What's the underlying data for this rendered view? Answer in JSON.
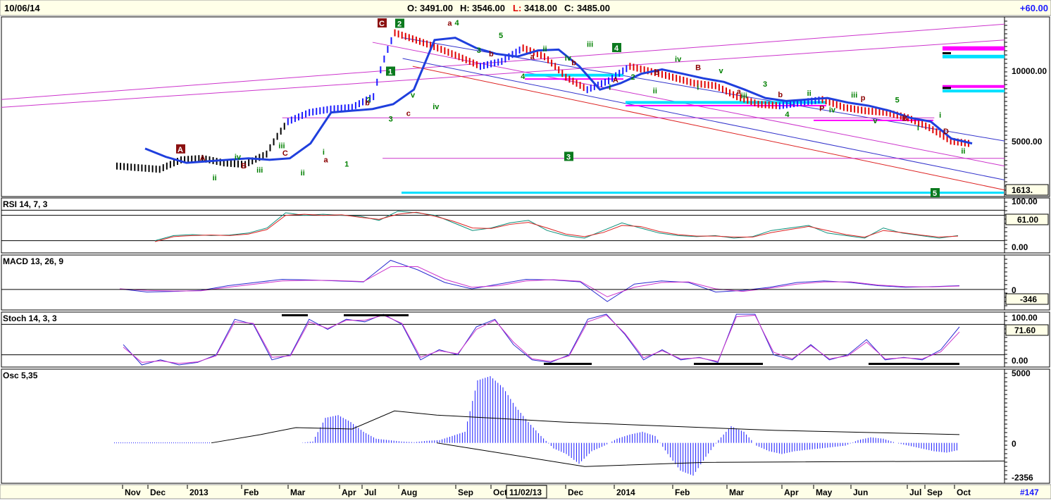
{
  "header": {
    "date": "10/06/14",
    "open_label": "O:",
    "open": "3491.00",
    "high_label": "H:",
    "high": "3546.00",
    "low_label": "L:",
    "low": "3418.00",
    "close_label": "C:",
    "close": "3485.00",
    "change": "+60.00"
  },
  "footer": {
    "id": "#147",
    "cursor_date": "11/02/13"
  },
  "colors": {
    "price_up": "#1a1aff",
    "price_down": "#e00000",
    "price_neutral": "#000000",
    "moving_average": "#1f3fdd",
    "channel_purple": "#cc33cc",
    "channel_blue": "#3333cc",
    "channel_red": "#dd2222",
    "cyan": "#00e0ff",
    "magenta": "#ff00ff",
    "wave_green": "#008000",
    "wave_red": "#8b0000",
    "box_green": "#0b7a1e",
    "box_red": "#8b1010",
    "signal_red": "#dd2222",
    "signal_magenta": "#cc33cc"
  },
  "chart_data": [
    {
      "panel": "price",
      "type": "line",
      "title": "",
      "scale": "log",
      "y_ticks": [
        "10000.00",
        "5000.00"
      ],
      "last_label": "1613.",
      "x_tick_labels": [
        "Nov",
        "Dec",
        "2013",
        "Feb",
        "Mar",
        "Apr",
        "Jul",
        "Aug",
        "Sep",
        "Oct",
        "Dec",
        "2014",
        "Feb",
        "Mar",
        "Apr",
        "May",
        "Jun",
        "Jul",
        "Sep",
        "Oct"
      ],
      "series": [
        {
          "values": [
            2700,
            2650,
            2600,
            2900,
            2950,
            2800,
            2750,
            3100,
            4500,
            5000,
            5200,
            5300,
            6000,
            12500,
            11500,
            10500,
            9500,
            8500,
            9000,
            10500,
            9500,
            7500,
            6500,
            7200,
            8500,
            8000,
            7500,
            7000,
            6800,
            6000,
            5500,
            5400,
            5600,
            5800,
            5300,
            5100,
            5000,
            4700,
            4200,
            3600,
            3485
          ]
        },
        {
          "values": [
            3300,
            3000,
            2800,
            2850,
            2900,
            2950,
            2900,
            2950,
            3500,
            5000,
            5100,
            5200,
            5500,
            6500,
            11500,
            11800,
            10500,
            9800,
            9500,
            10200,
            10300,
            8500,
            6500,
            7000,
            7800,
            8200,
            7800,
            7400,
            7100,
            6500,
            5900,
            5700,
            5800,
            5900,
            5600,
            5400,
            5100,
            4700,
            4500,
            3700,
            3500
          ]
        }
      ],
      "wave_labels": {
        "green": [
          "ii",
          "iv",
          "iii",
          "iii",
          "ii",
          "i",
          "1",
          "2",
          "3",
          "v",
          "iv",
          "4",
          "3",
          "5",
          "4",
          "ii",
          "iv",
          "iii",
          "i",
          "2",
          "ii",
          "iv",
          "i",
          "v",
          "iii",
          "3",
          "4",
          "ii",
          "iv",
          "iii",
          "v",
          "5",
          "i",
          "i",
          "ii"
        ],
        "red": [
          "A",
          "B",
          "C",
          "a",
          "b",
          "c",
          "a",
          "b",
          "a",
          "b",
          "A",
          "B",
          "B",
          "a",
          "b",
          "P",
          "p",
          "B",
          "D"
        ],
        "boxed": [
          "A",
          "C",
          "1",
          "2",
          "3",
          "4",
          "5"
        ]
      }
    },
    {
      "panel": "rsi",
      "type": "line",
      "title": "RSI 14, 7, 3",
      "y_ticks": [
        "100.00",
        "0.00"
      ],
      "last_label": "61.00",
      "levels": [
        80,
        70,
        20
      ],
      "series": [
        {
          "values": [
            20,
            30,
            32,
            30,
            31,
            35,
            45,
            75,
            70,
            72,
            70,
            68,
            60,
            78,
            75,
            70,
            55,
            40,
            45,
            55,
            60,
            40,
            30,
            25,
            40,
            55,
            45,
            35,
            30,
            28,
            30,
            25,
            28,
            40,
            45,
            50,
            35,
            30,
            25,
            45,
            35,
            30,
            25,
            30
          ]
        },
        {
          "values": [
            18,
            28,
            30,
            31,
            30,
            33,
            42,
            70,
            72,
            70,
            71,
            66,
            62,
            72,
            76,
            68,
            58,
            45,
            44,
            52,
            56,
            45,
            33,
            28,
            36,
            50,
            48,
            38,
            32,
            29,
            29,
            27,
            27,
            36,
            42,
            48,
            40,
            32,
            27,
            40,
            36,
            31,
            27,
            29
          ]
        }
      ]
    },
    {
      "panel": "macd",
      "type": "line",
      "title": "MACD 13, 26, 9",
      "y_ticks": [
        "0"
      ],
      "last_label": "-346",
      "series": [
        {
          "values": [
            -20,
            -30,
            -28,
            -25,
            -10,
            0,
            10,
            8,
            5,
            2,
            70,
            40,
            0,
            -20,
            -5,
            10,
            8,
            2,
            -60,
            -5,
            5,
            0,
            -30,
            -25,
            -15,
            0,
            5,
            0,
            -10,
            -15,
            -13,
            -10
          ]
        },
        {
          "values": [
            -20,
            -25,
            -27,
            -26,
            -15,
            -5,
            5,
            7,
            6,
            3,
            50,
            50,
            10,
            -15,
            -10,
            5,
            9,
            4,
            -45,
            -15,
            0,
            2,
            -20,
            -28,
            -18,
            -5,
            2,
            2,
            -8,
            -13,
            -14,
            -11
          ]
        }
      ]
    },
    {
      "panel": "stochastic",
      "type": "line",
      "title": "Stoch 14, 3, 3",
      "y_ticks": [
        "100.00",
        "0.00"
      ],
      "last_label": "71.60",
      "levels": [
        80,
        20
      ],
      "series": [
        {
          "values": [
            40,
            0,
            10,
            0,
            5,
            20,
            90,
            80,
            10,
            20,
            90,
            70,
            90,
            85,
            100,
            80,
            10,
            30,
            20,
            75,
            90,
            40,
            10,
            5,
            20,
            90,
            100,
            60,
            10,
            30,
            10,
            15,
            5,
            100,
            100,
            20,
            10,
            40,
            10,
            20,
            50,
            10,
            15,
            10,
            30,
            75
          ]
        },
        {
          "values": [
            35,
            5,
            8,
            3,
            6,
            18,
            85,
            82,
            15,
            18,
            85,
            72,
            88,
            88,
            98,
            82,
            15,
            28,
            22,
            70,
            88,
            45,
            12,
            7,
            18,
            85,
            98,
            62,
            14,
            28,
            12,
            14,
            7,
            95,
            98,
            25,
            12,
            38,
            12,
            18,
            45,
            12,
            14,
            12,
            26,
            65
          ]
        }
      ]
    },
    {
      "panel": "oscillator",
      "type": "bar",
      "title": "Osc 5,35",
      "y_ticks": [
        "5000",
        "0",
        "-2356"
      ],
      "series": [
        {
          "values": [
            0,
            0,
            0,
            0,
            0,
            0,
            0,
            0,
            100,
            1800,
            2000,
            1500,
            800,
            300,
            200,
            100,
            50,
            150,
            200,
            500,
            800,
            4500,
            4800,
            4000,
            2600,
            1500,
            500,
            -400,
            -800,
            -1500,
            -600,
            -200,
            300,
            600,
            800,
            500,
            -800,
            -2000,
            -2356,
            -1000,
            200,
            1200,
            800,
            -200,
            -600,
            -800,
            -600,
            -500,
            -400,
            -300,
            -200,
            200,
            400,
            300,
            0,
            -200,
            -400,
            -600,
            -700,
            -500
          ]
        }
      ]
    }
  ]
}
